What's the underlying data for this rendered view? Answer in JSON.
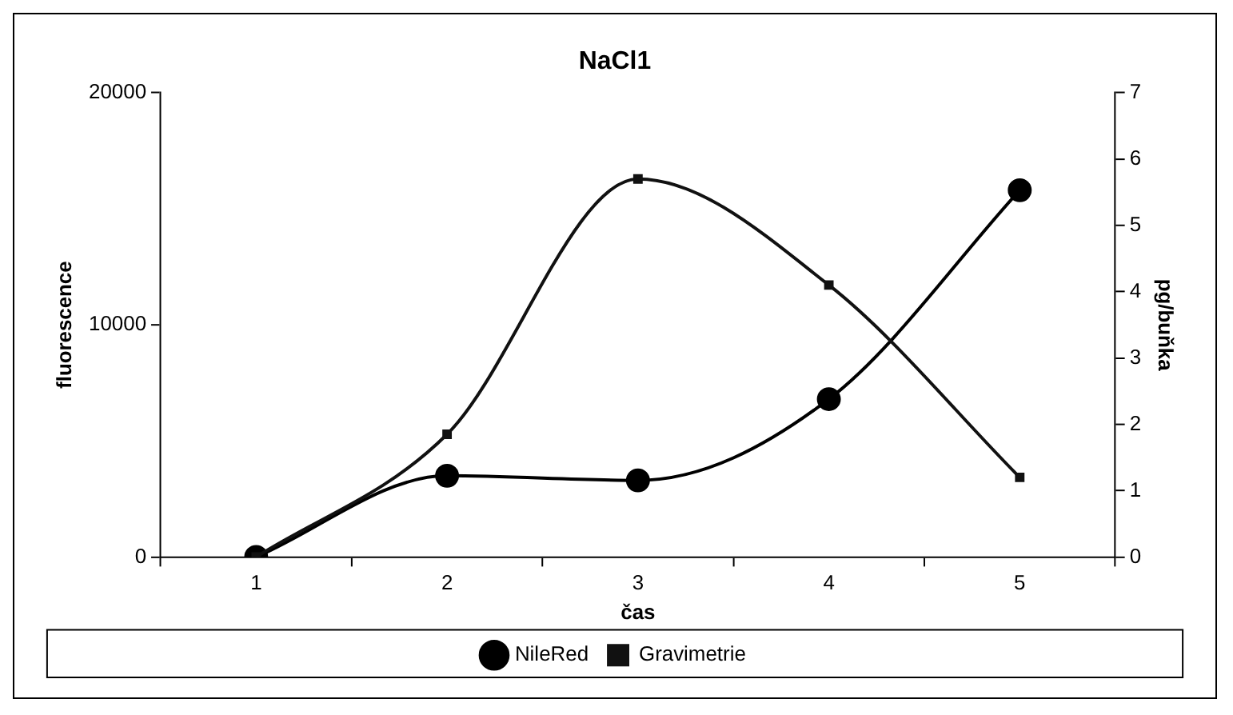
{
  "chart_data": {
    "type": "line",
    "title": "NaCl1",
    "xlabel": "čas",
    "ylabel": "fluorescence",
    "y2label": "pg/buňka",
    "categories": [
      "1",
      "2",
      "3",
      "4",
      "5"
    ],
    "series": [
      {
        "name": "NileRed",
        "color": "#000000",
        "marker": "circle",
        "values": [
          0,
          3500,
          3300,
          6800,
          15800
        ]
      },
      {
        "name": "Gravimetrie",
        "color": "#111111",
        "marker": "square",
        "axis": "y2",
        "values": [
          0,
          1.85,
          5.7,
          4.1,
          1.2
        ]
      }
    ],
    "ylim": [
      0,
      20000
    ],
    "yticks": [
      0,
      10000,
      20000
    ],
    "y2lim": [
      0,
      7
    ],
    "y2ticks": [
      0,
      1,
      2,
      3,
      4,
      5,
      6,
      7
    ],
    "grid": false,
    "legend": "bottom",
    "line_style": "solid"
  }
}
